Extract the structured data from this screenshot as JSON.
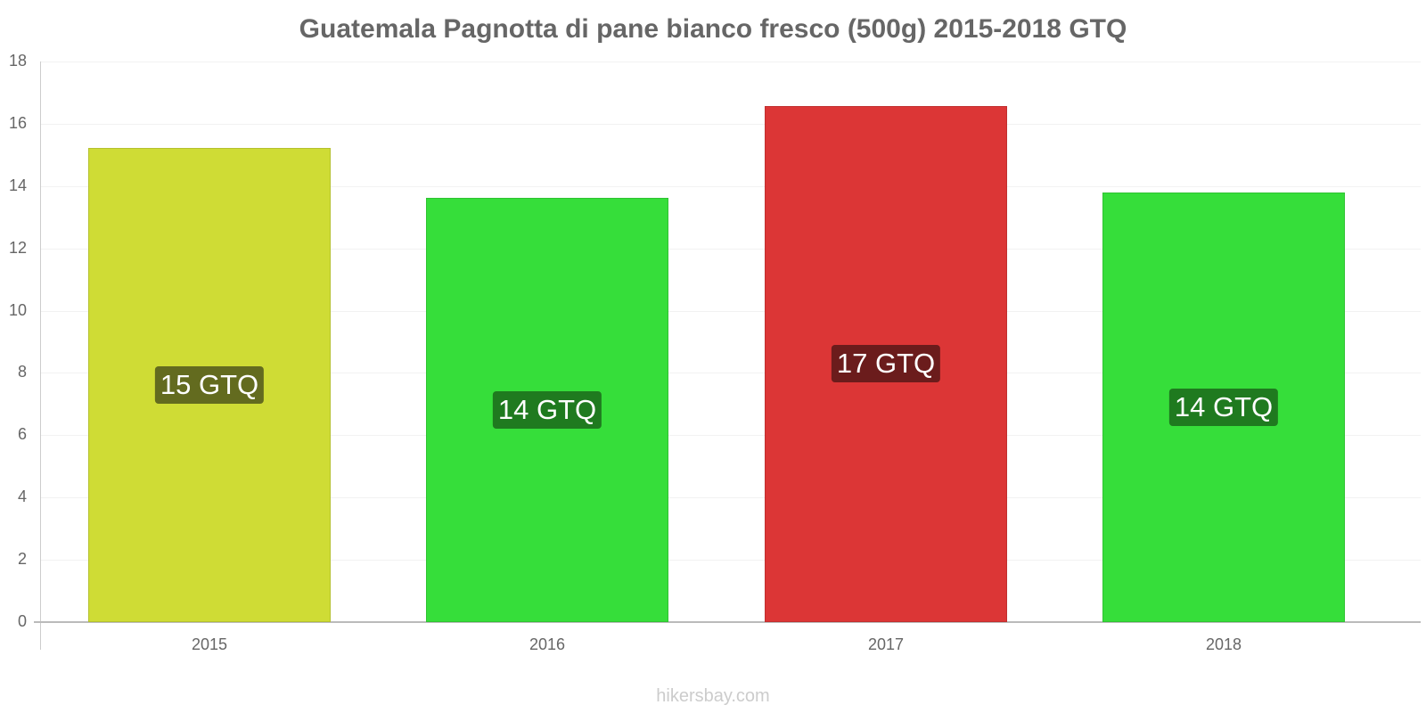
{
  "chart_data": {
    "type": "bar",
    "title": "Guatemala Pagnotta di pane bianco fresco (500g) 2015-2018 GTQ",
    "xlabel": "",
    "ylabel": "",
    "categories": [
      "2015",
      "2016",
      "2017",
      "2018"
    ],
    "values": [
      15.23,
      13.62,
      16.57,
      13.79
    ],
    "data_labels": [
      "15 GTQ",
      "14 GTQ",
      "17 GTQ",
      "14 GTQ"
    ],
    "bar_colors": [
      "#cfdc35",
      "#36de3a",
      "#dc3636",
      "#36de3a"
    ],
    "label_bg_colors": [
      "#636b1f",
      "#1f7a1f",
      "#6b1c1c",
      "#1f7a1f"
    ],
    "ylim": [
      0,
      18
    ],
    "yticks": [
      0,
      2,
      4,
      6,
      8,
      10,
      12,
      14,
      16,
      18
    ],
    "grid": true,
    "legend": null
  },
  "header": {
    "title": "Guatemala Pagnotta di pane bianco fresco (500g) 2015-2018 GTQ"
  },
  "footer": {
    "watermark": "hikersbay.com"
  }
}
